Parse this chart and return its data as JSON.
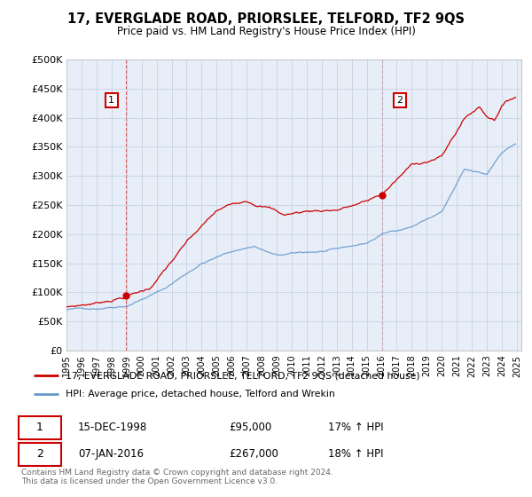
{
  "title": "17, EVERGLADE ROAD, PRIORSLEE, TELFORD, TF2 9QS",
  "subtitle": "Price paid vs. HM Land Registry's House Price Index (HPI)",
  "legend_line1": "17, EVERGLADE ROAD, PRIORSLEE, TELFORD, TF2 9QS (detached house)",
  "legend_line2": "HPI: Average price, detached house, Telford and Wrekin",
  "purchase1_date": "15-DEC-1998",
  "purchase1_price": 95000,
  "purchase1_hpi": "17% ↑ HPI",
  "purchase2_date": "07-JAN-2016",
  "purchase2_price": 267000,
  "purchase2_hpi": "18% ↑ HPI",
  "footer": "Contains HM Land Registry data © Crown copyright and database right 2024.\nThis data is licensed under the Open Government Licence v3.0.",
  "red_color": "#cc0000",
  "blue_color": "#6699cc",
  "bg_color": "#e8eef8",
  "grid_color": "#c0cce0",
  "ylim": [
    0,
    500000
  ],
  "yticks": [
    0,
    50000,
    100000,
    150000,
    200000,
    250000,
    300000,
    350000,
    400000,
    450000,
    500000
  ],
  "start_year": 1995,
  "end_year": 2025,
  "t1_year": 1998.96,
  "t1_price": 95000,
  "t2_year": 2016.03,
  "t2_price": 267000
}
